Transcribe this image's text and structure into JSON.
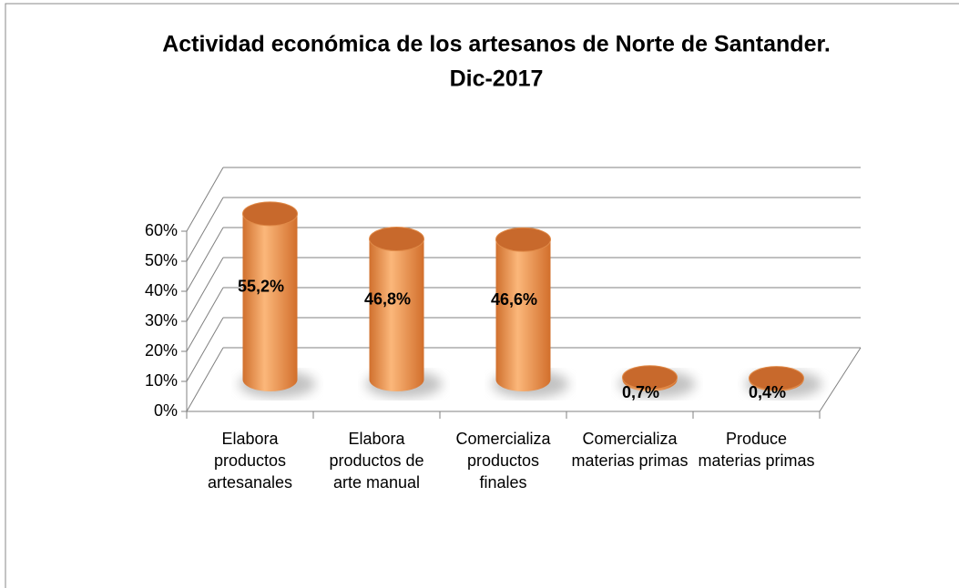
{
  "chart_data": {
    "type": "bar3d",
    "title": [
      "Actividad económica de los artesanos de Norte de Santander.",
      "Dic-2017"
    ],
    "categories": [
      "Elabora productos artesanales",
      "Elabora productos de arte manual",
      "Comercializa productos finales",
      "Comercializa materias primas",
      "Produce materias primas"
    ],
    "values": [
      55.2,
      46.8,
      46.6,
      0.7,
      0.4
    ],
    "value_labels": [
      "55,2%",
      "46,8%",
      "46,6%",
      "0,7%",
      "0,4%"
    ],
    "color": "#f79646",
    "ylim": [
      0,
      60
    ],
    "yticks": [
      {
        "value": 0,
        "label": "0%"
      },
      {
        "value": 10,
        "label": "10%"
      },
      {
        "value": 20,
        "label": "20%"
      },
      {
        "value": 30,
        "label": "30%"
      },
      {
        "value": 40,
        "label": "40%"
      },
      {
        "value": 50,
        "label": "50%"
      },
      {
        "value": 60,
        "label": "60%"
      }
    ],
    "grid": true
  }
}
